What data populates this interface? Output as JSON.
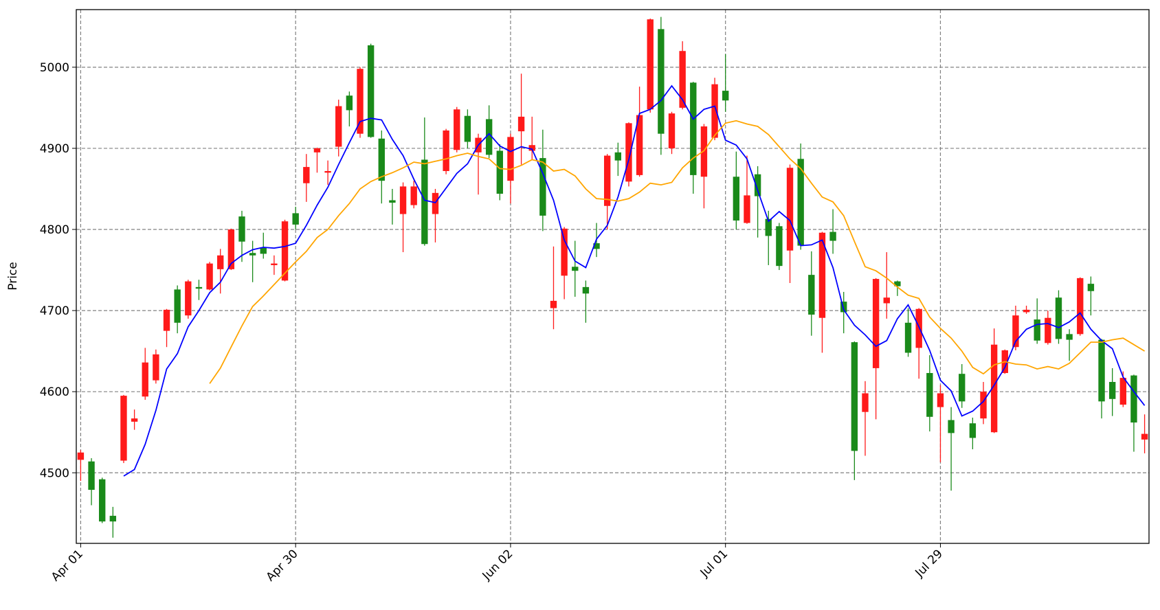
{
  "chart_data": {
    "type": "candlestick",
    "y_label": "Price",
    "categories": [
      "Apr 01",
      null,
      null,
      null,
      null,
      null,
      null,
      null,
      null,
      null,
      null,
      null,
      null,
      null,
      null,
      null,
      null,
      null,
      null,
      null,
      "Apr 30",
      null,
      null,
      null,
      null,
      null,
      null,
      null,
      null,
      null,
      null,
      null,
      null,
      null,
      null,
      null,
      null,
      null,
      null,
      null,
      "Jun 02",
      null,
      null,
      null,
      null,
      null,
      null,
      null,
      null,
      null,
      null,
      null,
      null,
      null,
      null,
      null,
      null,
      null,
      null,
      null,
      "Jul 01",
      null,
      null,
      null,
      null,
      null,
      null,
      null,
      null,
      null,
      null,
      null,
      null,
      null,
      null,
      null,
      null,
      null,
      null,
      null,
      "Jul 29",
      null,
      null,
      null,
      null,
      null,
      null,
      null,
      null,
      null,
      null,
      null,
      null,
      null,
      null,
      null,
      null,
      null,
      null,
      null
    ],
    "open": [
      4516,
      4514,
      4492,
      4447,
      4515,
      4563,
      4594,
      4614,
      4675,
      4726,
      4694,
      4729,
      4726,
      4751,
      4751,
      4816,
      4771,
      4778,
      4756,
      4737,
      4820,
      4857,
      4895,
      4870,
      4902,
      4965,
      4918,
      5027,
      4912,
      4836,
      4819,
      4830,
      4886,
      4819,
      4872,
      4898,
      4940,
      4895,
      4936,
      4897,
      4860,
      4921,
      4897,
      4888,
      4703,
      4743,
      4754,
      4729,
      4783,
      4829,
      4895,
      4859,
      4867,
      4948,
      5047,
      4900,
      4950,
      4981,
      4865,
      4913,
      4971,
      4865,
      4808,
      4868,
      4813,
      4804,
      4774,
      4887,
      4744,
      4691,
      4797,
      4711,
      4661,
      4575,
      4629,
      4709,
      4736,
      4685,
      4654,
      4623,
      4581,
      4565,
      4622,
      4561,
      4567,
      4550,
      4623,
      4655,
      4698,
      4689,
      4660,
      4716,
      4671,
      4671,
      4733,
      4664,
      4612,
      4584,
      4620,
      4541
    ],
    "high": [
      4528,
      4518,
      4494,
      4458,
      4596,
      4578,
      4654,
      4652,
      4702,
      4731,
      4738,
      4738,
      4760,
      4776,
      4801,
      4823,
      4786,
      4796,
      4768,
      4812,
      4828,
      4893,
      4901,
      4885,
      4960,
      4970,
      5000,
      5029,
      4922,
      4850,
      4858,
      4860,
      4938,
      4850,
      4924,
      4951,
      4948,
      4918,
      4953,
      4905,
      4918,
      4992,
      4939,
      4923,
      4779,
      4803,
      4786,
      4737,
      4808,
      4893,
      4907,
      4932,
      4976,
      5060,
      5062,
      4945,
      5032,
      4982,
      4930,
      4987,
      5016,
      4896,
      4891,
      4878,
      4823,
      4808,
      4880,
      4906,
      4773,
      4797,
      4825,
      4723,
      4662,
      4613,
      4740,
      4772,
      4737,
      4703,
      4703,
      4645,
      4608,
      4581,
      4634,
      4568,
      4612,
      4678,
      4652,
      4706,
      4706,
      4715,
      4700,
      4725,
      4677,
      4741,
      4742,
      4665,
      4629,
      4625,
      4621,
      4572
    ],
    "low": [
      4490,
      4460,
      4438,
      4420,
      4512,
      4553,
      4590,
      4610,
      4655,
      4672,
      4690,
      4713,
      4725,
      4721,
      4750,
      4760,
      4735,
      4764,
      4744,
      4736,
      4800,
      4834,
      4870,
      4855,
      4890,
      4927,
      4913,
      4913,
      4832,
      4806,
      4772,
      4826,
      4780,
      4784,
      4868,
      4895,
      4900,
      4843,
      4888,
      4836,
      4832,
      4880,
      4886,
      4798,
      4677,
      4714,
      4717,
      4685,
      4766,
      4800,
      4866,
      4853,
      4865,
      4944,
      4892,
      4893,
      4948,
      4844,
      4826,
      4910,
      4945,
      4800,
      4807,
      4790,
      4756,
      4750,
      4734,
      4775,
      4669,
      4648,
      4770,
      4672,
      4491,
      4521,
      4566,
      4690,
      4718,
      4643,
      4616,
      4551,
      4513,
      4478,
      4580,
      4529,
      4560,
      4549,
      4622,
      4651,
      4696,
      4659,
      4658,
      4659,
      4638,
      4669,
      4694,
      4567,
      4570,
      4581,
      4526,
      4524
    ],
    "close": [
      4525,
      4479,
      4440,
      4440,
      4595,
      4567,
      4636,
      4646,
      4701,
      4685,
      4736,
      4727,
      4758,
      4768,
      4800,
      4785,
      4768,
      4770,
      4758,
      4810,
      4806,
      4877,
      4900,
      4872,
      4952,
      4947,
      4998,
      4914,
      4860,
      4833,
      4853,
      4853,
      4782,
      4845,
      4922,
      4948,
      4908,
      4913,
      4892,
      4844,
      4914,
      4939,
      4904,
      4817,
      4712,
      4801,
      4749,
      4721,
      4776,
      4891,
      4885,
      4931,
      4941,
      5059,
      4918,
      4943,
      5020,
      4867,
      4927,
      4979,
      4959,
      4811,
      4842,
      4841,
      4792,
      4755,
      4876,
      4780,
      4695,
      4796,
      4786,
      4698,
      4527,
      4598,
      4739,
      4716,
      4730,
      4648,
      4702,
      4569,
      4598,
      4549,
      4588,
      4543,
      4600,
      4658,
      4651,
      4694,
      4701,
      4663,
      4691,
      4665,
      4664,
      4740,
      4724,
      4588,
      4591,
      4617,
      4562,
      4548
    ],
    "up_color": "#ff1a1a",
    "down_color": "#1a8a1a",
    "lines": [
      {
        "color": "#0000ff",
        "values": [
          null,
          null,
          null,
          null,
          4496,
          4504,
          4535,
          4577,
          4628,
          4647,
          4680,
          4700,
          4722,
          4735,
          4758,
          4768,
          4775,
          4778,
          4777,
          4779,
          4783,
          4805,
          4830,
          4852,
          4880,
          4907,
          4933,
          4937,
          4935,
          4911,
          4891,
          4862,
          4836,
          4833,
          4851,
          4869,
          4881,
          4904,
          4918,
          4903,
          4896,
          4902,
          4899,
          4869,
          4836,
          4787,
          4761,
          4753,
          4788,
          4805,
          4840,
          4886,
          4943,
          4948,
          4959,
          4977,
          4960,
          4936,
          4948,
          4952,
          4910,
          4904,
          4887,
          4848,
          4810,
          4822,
          4811,
          4780,
          4781,
          4787,
          4753,
          4701,
          4682,
          4670,
          4656,
          4663,
          4690,
          4707,
          4680,
          4651,
          4614,
          4601,
          4570,
          4576,
          4588,
          4608,
          4630,
          4662,
          4677,
          4683,
          4684,
          4679,
          4686,
          4697,
          4677,
          4663,
          4653,
          4618,
          4600,
          4583
        ]
      },
      {
        "color": "#ffa500",
        "values": [
          null,
          null,
          null,
          null,
          null,
          null,
          null,
          null,
          null,
          null,
          null,
          null,
          4610,
          4629,
          4655,
          4681,
          4705,
          4718,
          4732,
          4746,
          4760,
          4773,
          4790,
          4800,
          4817,
          4832,
          4850,
          4859,
          4865,
          4870,
          4876,
          4883,
          4881,
          4884,
          4887,
          4891,
          4894,
          4890,
          4887,
          4875,
          4874,
          4879,
          4886,
          4883,
          4872,
          4874,
          4866,
          4850,
          4838,
          4837,
          4835,
          4838,
          4846,
          4857,
          4855,
          4858,
          4876,
          4888,
          4897,
          4916,
          4931,
          4934,
          4930,
          4927,
          4917,
          4902,
          4887,
          4875,
          4857,
          4840,
          4834,
          4817,
          4785,
          4754,
          4749,
          4740,
          4729,
          4719,
          4715,
          4692,
          4678,
          4666,
          4650,
          4630,
          4622,
          4633,
          4637,
          4634,
          4633,
          4628,
          4631,
          4628,
          4635,
          4648,
          4661,
          4661,
          4664,
          4666,
          4658,
          4650
        ]
      }
    ],
    "ylim": [
      4413,
      5071
    ],
    "yticks": [
      4500,
      4600,
      4700,
      4800,
      4900,
      5000
    ],
    "grid": true
  }
}
